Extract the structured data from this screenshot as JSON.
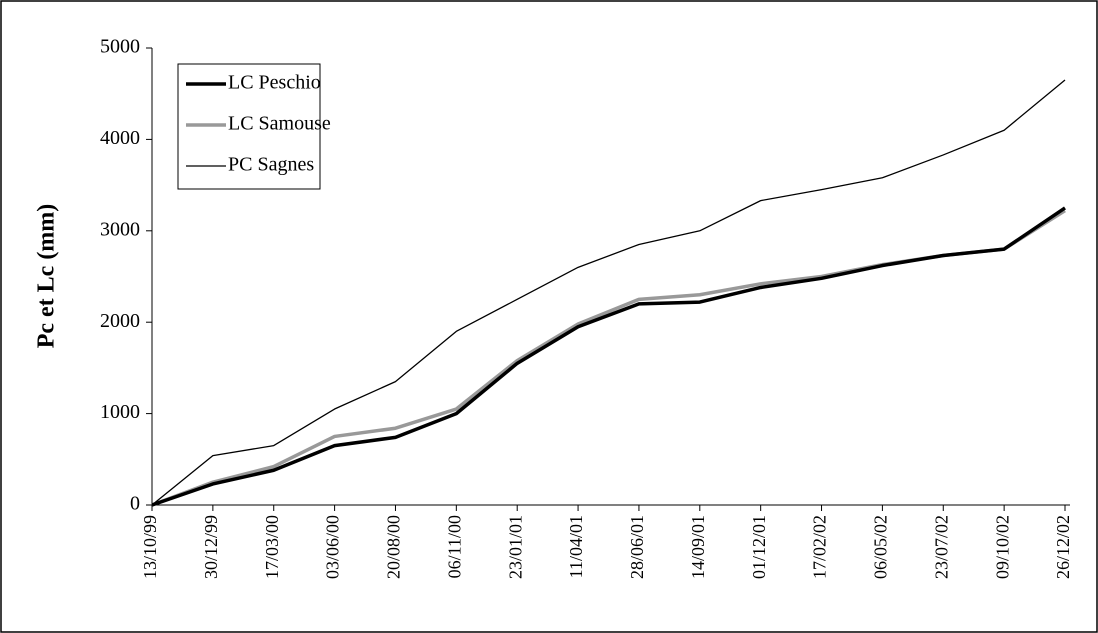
{
  "chart_data": {
    "type": "line",
    "ylabel": "Pc et Lc (mm)",
    "x": [
      "13/10/99",
      "30/12/99",
      "17/03/00",
      "03/06/00",
      "20/08/00",
      "06/11/00",
      "23/01/01",
      "11/04/01",
      "28/06/01",
      "14/09/01",
      "01/12/01",
      "17/02/02",
      "06/05/02",
      "23/07/02",
      "09/10/02",
      "26/12/02"
    ],
    "series": [
      {
        "name": "LC Peschio",
        "color": "#000000",
        "values": [
          0,
          230,
          380,
          650,
          740,
          1000,
          1550,
          1950,
          2200,
          2220,
          2380,
          2480,
          2620,
          2730,
          2800,
          3250
        ]
      },
      {
        "name": "LC Samouse",
        "color": "#999999",
        "values": [
          0,
          250,
          420,
          750,
          840,
          1050,
          1580,
          1980,
          2250,
          2300,
          2420,
          2500,
          2630,
          2730,
          2800,
          3220
        ]
      },
      {
        "name": "PC Sagnes",
        "color": "#000000",
        "values": [
          0,
          540,
          650,
          1050,
          1350,
          1900,
          2250,
          2600,
          2850,
          3000,
          3330,
          3450,
          3580,
          3830,
          4100,
          4650
        ]
      }
    ],
    "ylim": [
      0,
      5000
    ],
    "yticks": [
      0,
      1000,
      2000,
      3000,
      4000,
      5000
    ],
    "grid": false,
    "legend": "top-left"
  }
}
